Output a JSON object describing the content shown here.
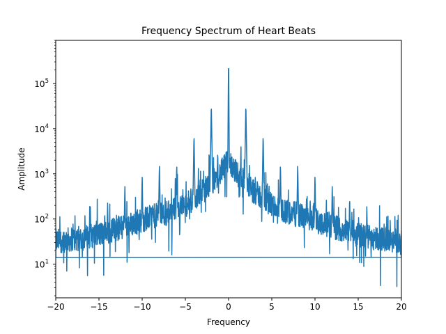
{
  "chart_data": {
    "type": "line",
    "title": "Frequency Spectrum of Heart Beats",
    "xlabel": "Frequency",
    "ylabel": "Amplitude",
    "xlim": [
      -20,
      20
    ],
    "ylim": [
      1.8,
      900000
    ],
    "yscale": "log",
    "grid": false,
    "legend": "none",
    "x_ticks": [
      {
        "value": -20,
        "label": "−20"
      },
      {
        "value": -15,
        "label": "−15"
      },
      {
        "value": -10,
        "label": "−10"
      },
      {
        "value": -5,
        "label": "−5"
      },
      {
        "value": 0,
        "label": "0"
      },
      {
        "value": 5,
        "label": "5"
      },
      {
        "value": 10,
        "label": "10"
      },
      {
        "value": 15,
        "label": "15"
      },
      {
        "value": 20,
        "label": "20"
      }
    ],
    "y_ticks": [
      {
        "value": 10,
        "base": "10",
        "exp": "1"
      },
      {
        "value": 100,
        "base": "10",
        "exp": "2"
      },
      {
        "value": 1000,
        "base": "10",
        "exp": "3"
      },
      {
        "value": 10000,
        "base": "10",
        "exp": "4"
      },
      {
        "value": 100000,
        "base": "10",
        "exp": "5"
      }
    ],
    "series": [
      {
        "color": "#1f77b4",
        "spectrum_peaks": [
          {
            "x": 0,
            "y": 480000
          },
          {
            "x": 2,
            "y": 37000
          },
          {
            "x": 4,
            "y": 8000
          },
          {
            "x": 6,
            "y": 1800
          },
          {
            "x": 8,
            "y": 1800
          },
          {
            "x": 10,
            "y": 1000
          },
          {
            "x": 12,
            "y": 600
          },
          {
            "x": 14,
            "y": 250
          },
          {
            "x": 16,
            "y": 200
          },
          {
            "x": 18,
            "y": 80
          },
          {
            "x": 20,
            "y": 55
          }
        ],
        "spectrum_baseline": [
          {
            "x": 0,
            "y": 2000
          },
          {
            "x": 1,
            "y": 1000
          },
          {
            "x": 3,
            "y": 400
          },
          {
            "x": 5,
            "y": 200
          },
          {
            "x": 7,
            "y": 140
          },
          {
            "x": 9,
            "y": 110
          },
          {
            "x": 11,
            "y": 80
          },
          {
            "x": 13,
            "y": 60
          },
          {
            "x": 15,
            "y": 45
          },
          {
            "x": 17,
            "y": 38
          },
          {
            "x": 20,
            "y": 32
          }
        ],
        "wraparound": {
          "from": [
            20,
            14.2
          ],
          "to": [
            -20,
            14
          ]
        }
      }
    ]
  }
}
